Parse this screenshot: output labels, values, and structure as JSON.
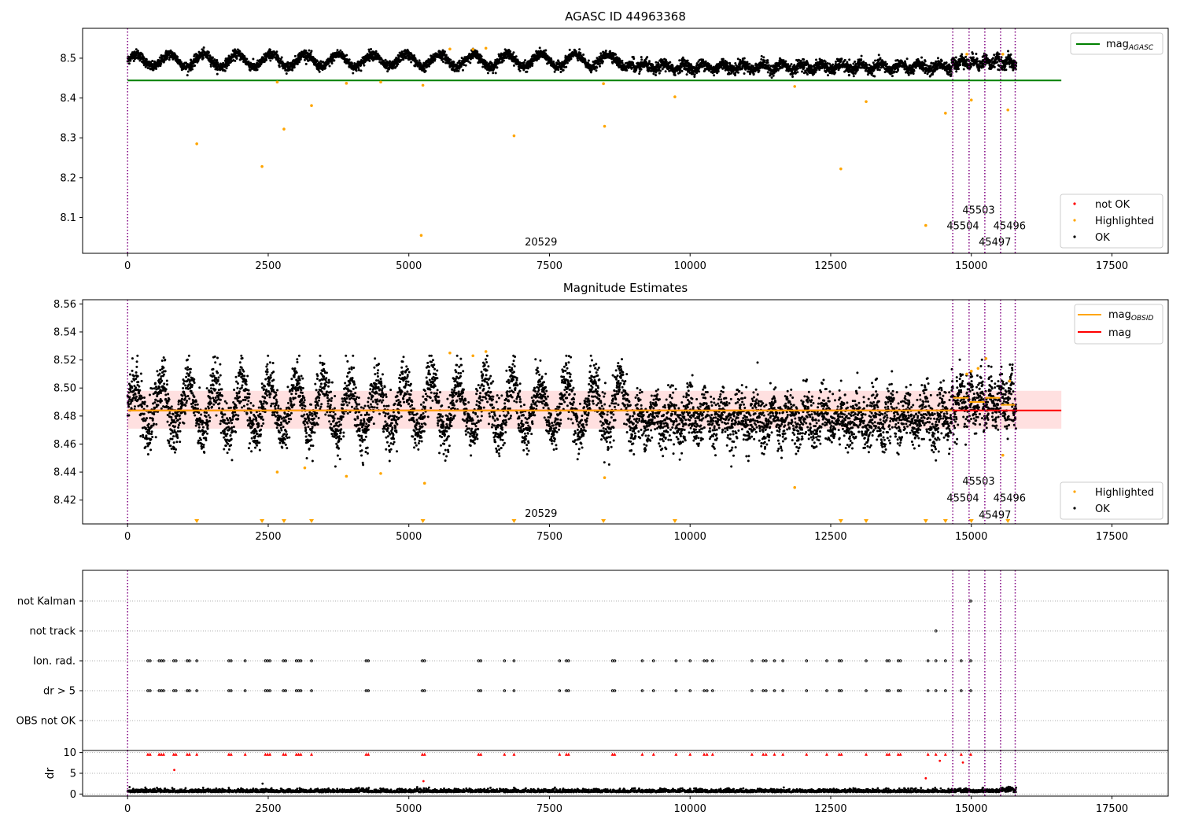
{
  "figure": {
    "background": "#ffffff"
  },
  "colors": {
    "ok": "#000000",
    "highlighted": "#ffa500",
    "not_ok": "#ff0000",
    "agasc": "#008000",
    "mag": "#ff0000",
    "mag_obsid": "#ffa500",
    "band": "#ffcccc",
    "vline": "#800080",
    "grid": "#b0b0b0"
  },
  "chart_data": [
    {
      "type": "scatter",
      "title": "AGASC ID 44963368",
      "xlim": [
        -800,
        18500
      ],
      "ylim": [
        8.01,
        8.575
      ],
      "xticks": [
        0,
        2500,
        5000,
        7500,
        10000,
        12500,
        15000,
        17500
      ],
      "xtick_labels": [
        "0",
        "2500",
        "5000",
        "7500",
        "10000",
        "12500",
        "15000",
        "17500"
      ],
      "yticks": [
        8.1,
        8.2,
        8.3,
        8.4,
        8.5
      ],
      "ytick_labels": [
        "8.1",
        "8.2",
        "8.3",
        "8.4",
        "8.5"
      ],
      "ok_series": {
        "name": "OK",
        "x_range": [
          0,
          15800
        ],
        "base_mag": 8.484,
        "segments": [
          [
            0,
            9000,
            8.494,
            0.018
          ],
          [
            9000,
            14650,
            8.478,
            0.012
          ],
          [
            14650,
            15800,
            8.489,
            0.01
          ]
        ]
      },
      "highlighted": {
        "name": "Highlighted",
        "x": [
          1230,
          2390,
          2780,
          3270,
          2660,
          3890,
          4500,
          5250,
          5220,
          5730,
          6140,
          6370,
          6870,
          8480,
          8460,
          9730,
          11860,
          12680,
          13130,
          14190,
          14540,
          14920,
          15000,
          15650,
          15560
        ],
        "y": [
          8.285,
          8.228,
          8.322,
          8.381,
          8.44,
          8.437,
          8.44,
          8.432,
          8.055,
          8.523,
          8.522,
          8.525,
          8.305,
          8.329,
          8.436,
          8.403,
          8.429,
          8.222,
          8.391,
          8.08,
          8.362,
          8.51,
          8.395,
          8.37,
          8.51
        ]
      },
      "agasc_line": {
        "name": "mag$_{AGASC}$",
        "legend_label": "mag",
        "legend_sub": "AGASC",
        "y": 8.444,
        "x": [
          0,
          16600
        ]
      },
      "obsid_lines": [
        0,
        14670,
        14960,
        15240,
        15520,
        15780
      ],
      "obsid_labels": [
        {
          "label": "20529",
          "x": 7350,
          "y": 8.03
        },
        {
          "label": "45503",
          "x": 15130,
          "y": 8.11
        },
        {
          "label": "45504",
          "x": 14850,
          "y": 8.07
        },
        {
          "label": "45496",
          "x": 15680,
          "y": 8.07
        },
        {
          "label": "45497",
          "x": 15420,
          "y": 8.03
        }
      ],
      "legend_upper": [
        "mag_AGASC"
      ],
      "legend_lower": [
        {
          "label": "not OK",
          "color": "#ff0000"
        },
        {
          "label": "Highlighted",
          "color": "#ffa500"
        },
        {
          "label": "OK",
          "color": "#000000"
        }
      ]
    },
    {
      "type": "scatter",
      "title": "Magnitude Estimates",
      "xlim": [
        -800,
        18500
      ],
      "ylim": [
        8.403,
        8.563
      ],
      "xticks": [
        0,
        2500,
        5000,
        7500,
        10000,
        12500,
        15000,
        17500
      ],
      "xtick_labels": [
        "0",
        "2500",
        "5000",
        "7500",
        "10000",
        "12500",
        "15000",
        "17500"
      ],
      "yticks": [
        8.42,
        8.44,
        8.46,
        8.48,
        8.5,
        8.52,
        8.54,
        8.56
      ],
      "ytick_labels": [
        "8.42",
        "8.44",
        "8.46",
        "8.48",
        "8.50",
        "8.52",
        "8.54",
        "8.56"
      ],
      "mag_line": {
        "name": "mag",
        "y": 8.484,
        "band": [
          8.471,
          8.498
        ],
        "x": [
          0,
          16600
        ]
      },
      "mag_obsid": [
        {
          "x": [
            0,
            14670
          ],
          "y": 8.484
        },
        {
          "x": [
            14670,
            14960
          ],
          "y": 8.493
        },
        {
          "x": [
            14960,
            15240
          ],
          "y": 8.49
        },
        {
          "x": [
            15240,
            15520
          ],
          "y": 8.493
        },
        {
          "x": [
            15520,
            15780
          ],
          "y": 8.488
        }
      ],
      "mag_obsid_label": "mag",
      "mag_obsid_sub": "OBSID",
      "highlighted": {
        "name": "Highlighted",
        "x": [
          2660,
          3150,
          3890,
          4500,
          5280,
          5730,
          6140,
          6370,
          8480,
          11860,
          14920,
          15000,
          15120,
          15260,
          15680,
          15560
        ],
        "y": [
          8.44,
          8.443,
          8.437,
          8.439,
          8.432,
          8.525,
          8.523,
          8.526,
          8.436,
          8.429,
          8.51,
          8.512,
          8.514,
          8.521,
          8.505,
          8.452
        ]
      },
      "below_markers_x": [
        1230,
        2390,
        2780,
        3270,
        5250,
        6870,
        8460,
        9730,
        12680,
        13130,
        14190,
        14540,
        15000,
        15650
      ],
      "obsid_lines": [
        0,
        14670,
        14960,
        15240,
        15520,
        15780
      ],
      "obsid_labels": [
        {
          "label": "20529",
          "x": 7350,
          "y": 8.408
        },
        {
          "label": "45503",
          "x": 15130,
          "y": 8.431
        },
        {
          "label": "45504",
          "x": 14850,
          "y": 8.419
        },
        {
          "label": "45496",
          "x": 15680,
          "y": 8.419
        },
        {
          "label": "45497",
          "x": 15420,
          "y": 8.407
        }
      ],
      "legend_upper": [
        "mag_OBSID",
        "mag"
      ],
      "legend_lower": [
        {
          "label": "Highlighted",
          "color": "#ffa500"
        },
        {
          "label": "OK",
          "color": "#000000"
        }
      ]
    },
    {
      "type": "scatter",
      "title": "",
      "categories": [
        "not Kalman",
        "not track",
        "Ion. rad.",
        "dr > 5",
        "OBS not OK"
      ],
      "xlim": [
        -800,
        18500
      ],
      "flag_x": [
        360,
        400,
        560,
        600,
        640,
        820,
        860,
        1060,
        1100,
        1230,
        1800,
        1840,
        2090,
        2450,
        2490,
        2530,
        2770,
        2810,
        3000,
        3040,
        3080,
        3270,
        4240,
        4280,
        5240,
        5280,
        6240,
        6280,
        6700,
        6870,
        7680,
        7800,
        7840,
        8620,
        8660,
        9150,
        9350,
        9750,
        10000,
        10250,
        10300,
        10400,
        11100,
        11300,
        11350,
        11500,
        11650,
        12070,
        12430,
        12650,
        12690,
        13130,
        13500,
        13540,
        13700,
        13740,
        14230,
        14370,
        14540,
        14820,
        14990
      ],
      "not_track_x": [
        14370
      ],
      "not_kalman_x": [
        14990
      ]
    },
    {
      "type": "scatter",
      "title": "",
      "ylabel": "dr",
      "xlim": [
        -800,
        18500
      ],
      "ylim": [
        -0.5,
        10.5
      ],
      "yticks": [
        0,
        5,
        10
      ],
      "ytick_labels": [
        "0",
        "5",
        "10"
      ],
      "xticks": [
        0,
        2500,
        5000,
        7500,
        10000,
        12500,
        15000,
        17500
      ],
      "xtick_labels": [
        "0",
        "2500",
        "5000",
        "7500",
        "10000",
        "12500",
        "15000",
        "17500"
      ],
      "dr_base": 0.45,
      "outliers": [
        {
          "x": 830,
          "y": 5.8
        },
        {
          "x": 5260,
          "y": 3.1
        },
        {
          "x": 14190,
          "y": 3.8
        },
        {
          "x": 14440,
          "y": 8.0
        },
        {
          "x": 14850,
          "y": 7.6
        },
        {
          "x": 2400,
          "y": 2.5
        },
        {
          "x": 6870,
          "y": 1.5
        }
      ]
    }
  ]
}
